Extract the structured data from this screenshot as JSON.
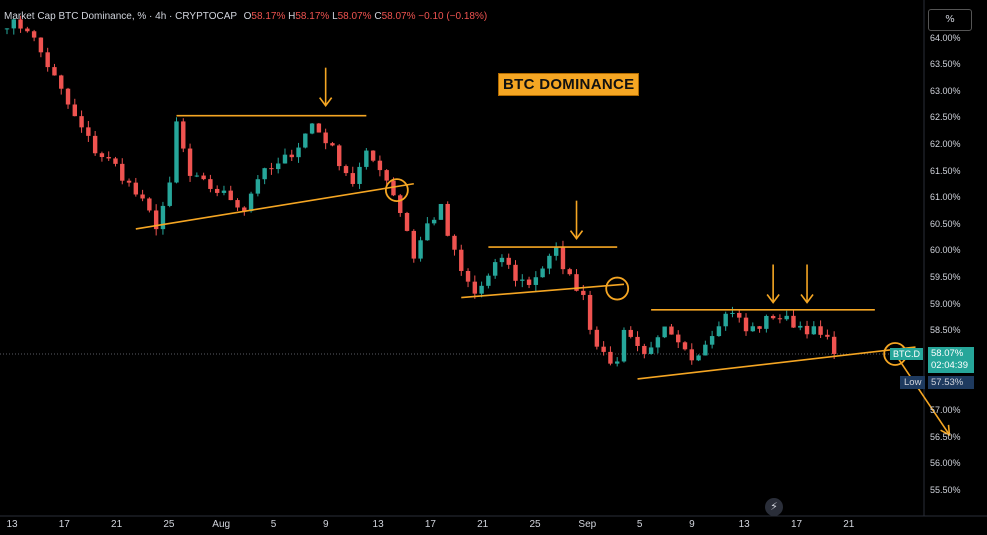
{
  "header": {
    "symbol_desc": "Market Cap BTC Dominance, % · 4h · CRYPTOCAP",
    "open_label": "O",
    "open": "58.17%",
    "high_label": "H",
    "high": "58.17%",
    "low_label": "L",
    "low": "58.07%",
    "close_label": "C",
    "close": "58.07%",
    "change": "−0.10 (−0.18%)"
  },
  "scale_button": "%",
  "annotation_title": "BTC DOMINANCE",
  "price_label": {
    "symbol": "BTC.D",
    "value": "58.07%",
    "countdown": "02:04:39"
  },
  "low_label": {
    "tag": "Low",
    "value": "57.53%"
  },
  "colors": {
    "up": "#26a69a",
    "down": "#ef5350",
    "annotation": "#f5a623",
    "background": "#000000"
  },
  "icons": {
    "alert": "lightning-icon"
  },
  "chart_data": {
    "type": "candlestick",
    "title": "Market Cap BTC Dominance, % · 4h · CRYPTOCAP",
    "ylabel": "",
    "xlabel": "",
    "ylim": [
      55.1,
      64.4
    ],
    "y_ticks": [
      "64.00%",
      "63.50%",
      "63.00%",
      "62.50%",
      "62.00%",
      "61.50%",
      "61.00%",
      "60.50%",
      "60.00%",
      "59.50%",
      "59.00%",
      "58.50%",
      "58.00%",
      "57.50%",
      "57.00%",
      "56.50%",
      "56.00%",
      "55.50%"
    ],
    "x_ticks": [
      "13",
      "17",
      "21",
      "25",
      "Aug",
      "5",
      "9",
      "13",
      "17",
      "21",
      "25",
      "Sep",
      "5",
      "9",
      "13",
      "17",
      "21"
    ],
    "path": [
      [
        0,
        64.3
      ],
      [
        3,
        64.2
      ],
      [
        6,
        63.5
      ],
      [
        10,
        62.5
      ],
      [
        13,
        61.9
      ],
      [
        16,
        61.6
      ],
      [
        20,
        60.9
      ],
      [
        22,
        60.5
      ],
      [
        24,
        61.2
      ],
      [
        25,
        62.4
      ],
      [
        27,
        61.4
      ],
      [
        30,
        61.2
      ],
      [
        33,
        61.0
      ],
      [
        35,
        60.8
      ],
      [
        37,
        61.4
      ],
      [
        40,
        61.6
      ],
      [
        43,
        62.0
      ],
      [
        45,
        62.4
      ],
      [
        47,
        62.1
      ],
      [
        49,
        61.7
      ],
      [
        51,
        61.3
      ],
      [
        53,
        61.8
      ],
      [
        55,
        61.6
      ],
      [
        57,
        61.1
      ],
      [
        59,
        60.4
      ],
      [
        60,
        59.9
      ],
      [
        62,
        60.5
      ],
      [
        64,
        60.8
      ],
      [
        65,
        60.3
      ],
      [
        67,
        59.6
      ],
      [
        69,
        59.2
      ],
      [
        71,
        59.5
      ],
      [
        73,
        59.9
      ],
      [
        75,
        59.5
      ],
      [
        77,
        59.4
      ],
      [
        79,
        59.7
      ],
      [
        81,
        60.0
      ],
      [
        83,
        59.5
      ],
      [
        85,
        59.2
      ],
      [
        86,
        58.6
      ],
      [
        88,
        58.0
      ],
      [
        90,
        57.9
      ],
      [
        91,
        58.6
      ],
      [
        93,
        58.2
      ],
      [
        95,
        58.1
      ],
      [
        97,
        58.5
      ],
      [
        99,
        58.2
      ],
      [
        101,
        58.0
      ],
      [
        103,
        58.3
      ],
      [
        105,
        58.7
      ],
      [
        107,
        58.9
      ],
      [
        109,
        58.5
      ],
      [
        111,
        58.6
      ],
      [
        113,
        58.8
      ],
      [
        115,
        58.7
      ],
      [
        117,
        58.6
      ],
      [
        119,
        58.5
      ],
      [
        121,
        58.3
      ],
      [
        122,
        58.07
      ]
    ],
    "drawings": {
      "resistance_lines": [
        {
          "x_start": 25,
          "x_end": 53,
          "y": 62.55
        },
        {
          "x_start": 71,
          "x_end": 90,
          "y": 60.08
        },
        {
          "x_start": 95,
          "x_end": 128,
          "y": 58.9
        }
      ],
      "support_lines": [
        {
          "x_start": 19,
          "x_end": 60,
          "y_start": 60.42,
          "y_end": 61.27
        },
        {
          "x_start": 67,
          "x_end": 91,
          "y_start": 59.13,
          "y_end": 59.38
        },
        {
          "x_start": 93,
          "x_end": 134,
          "y_start": 57.6,
          "y_end": 58.2
        }
      ],
      "down_arrows": [
        {
          "x": 47,
          "y": 62.7
        },
        {
          "x": 84,
          "y": 60.2
        },
        {
          "x": 113,
          "y": 59.0
        },
        {
          "x": 118,
          "y": 59.0
        }
      ],
      "breakdown_circles": [
        {
          "x": 57.5,
          "y": 61.15
        },
        {
          "x": 90,
          "y": 59.3
        },
        {
          "x": 131,
          "y": 58.07
        }
      ],
      "projection_arrow": {
        "x_start": 131,
        "y_start": 58.07,
        "x_end": 139,
        "y_end": 56.55
      }
    }
  }
}
